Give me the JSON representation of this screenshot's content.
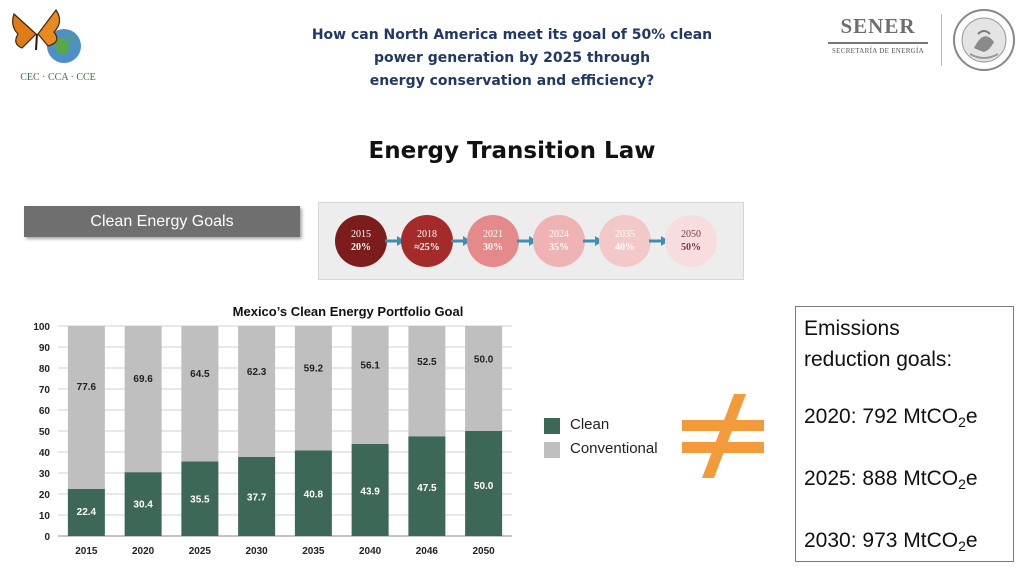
{
  "header": {
    "title_line1": "How can North America meet its goal of 50% clean",
    "title_line2": "power generation by 2025 through",
    "title_line3": "energy conservation and efficiency?",
    "left_logo_text": "CEC · CCA · CCE",
    "right_logo_name": "SENER",
    "right_logo_sub": "SECRETARÍA DE ENERGÍA",
    "seal_icon": "mexico-coat-of-arms-seal"
  },
  "section_title": "Energy Transition Law",
  "goals_banner": "Clean Energy Goals",
  "milestones": [
    {
      "year": "2015",
      "pct": "20%",
      "color": "#7d1c1c",
      "text_color": "#ffffff"
    },
    {
      "year": "2018",
      "pct": "≈25%",
      "color": "#a52a2a",
      "text_color": "#ffffff"
    },
    {
      "year": "2021",
      "pct": "30%",
      "color": "#e58a8a",
      "text_color": "#ffffff"
    },
    {
      "year": "2024",
      "pct": "35%",
      "color": "#efb3b3",
      "text_color": "#ffffff"
    },
    {
      "year": "2035",
      "pct": "40%",
      "color": "#f3c8c8",
      "text_color": "#ffffff"
    },
    {
      "year": "2050",
      "pct": "50%",
      "color": "#f7dddd",
      "text_color": "#7a3a3a"
    }
  ],
  "chart_data": {
    "type": "bar",
    "stacked": true,
    "title": "Mexico’s Clean Energy Portfolio Goal",
    "categories": [
      "2015",
      "2020",
      "2025",
      "2030",
      "2035",
      "2040",
      "2046",
      "2050"
    ],
    "series": [
      {
        "name": "Clean",
        "color": "#3d6756",
        "values": [
          22.4,
          30.4,
          35.5,
          37.7,
          40.8,
          43.9,
          47.5,
          50.0
        ],
        "labels": [
          "22.4",
          "30.4",
          "35.5",
          "37.7",
          "40.8",
          "43.9",
          "47.5",
          "50.0"
        ]
      },
      {
        "name": "Conventional",
        "color": "#bfbfbf",
        "values": [
          77.6,
          69.6,
          64.5,
          62.3,
          59.2,
          56.1,
          52.5,
          50.0
        ],
        "labels": [
          "77.6",
          "69.6",
          "64.5",
          "62.3",
          "59.2",
          "56.1",
          "52.5",
          "50.0"
        ]
      }
    ],
    "ylim": [
      0,
      100
    ],
    "yticks": [
      "0",
      "10",
      "20",
      "30",
      "40",
      "50",
      "60",
      "70",
      "80",
      "90",
      "100"
    ],
    "grid": true,
    "legend_position": "right"
  },
  "not_equal_icon": "not-equal-icon",
  "emissions": {
    "heading_line1": "Emissions",
    "heading_line2": "reduction goals:",
    "goals": [
      {
        "year_label": "2020: 792 MtCO",
        "subscript": "2",
        "suffix": "e"
      },
      {
        "year_label": "2025: 888 MtCO",
        "subscript": "2",
        "suffix": "e"
      },
      {
        "year_label": "2030: 973 MtCO",
        "subscript": "2",
        "suffix": "e"
      }
    ]
  }
}
